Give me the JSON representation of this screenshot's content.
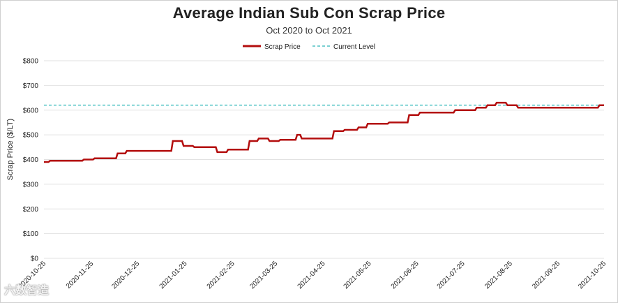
{
  "chart_data": {
    "type": "line",
    "title": "Average Indian Sub Con Scrap Price",
    "subtitle": "Oct 2020 to Oct 2021",
    "ylabel": "Scrap Price ($/LT)",
    "xlabel": "",
    "ylim": [
      0,
      800
    ],
    "yticks": [
      "$0",
      "$100",
      "$200",
      "$300",
      "$400",
      "$500",
      "$600",
      "$700",
      "$800"
    ],
    "xticks": [
      "2020-10-25",
      "2020-11-25",
      "2020-12-25",
      "2021-01-25",
      "2021-02-25",
      "2021-03-25",
      "2021-04-25",
      "2021-05-25",
      "2021-06-25",
      "2021-07-25",
      "2021-08-25",
      "2021-09-25",
      "2021-10-25"
    ],
    "legend": [
      "Scrap Price",
      "Current Level"
    ],
    "current_level": 620,
    "colors": {
      "scrap_price": "#b30d0d",
      "current_level": "#4fc1c4",
      "grid": "#e2e2e2"
    },
    "series": [
      {
        "name": "Scrap Price",
        "points": [
          [
            "2020-10-25",
            390
          ],
          [
            "2020-10-28",
            390
          ],
          [
            "2020-10-29",
            395
          ],
          [
            "2020-11-19",
            395
          ],
          [
            "2020-11-20",
            400
          ],
          [
            "2020-11-26",
            400
          ],
          [
            "2020-11-27",
            405
          ],
          [
            "2020-12-11",
            405
          ],
          [
            "2020-12-12",
            425
          ],
          [
            "2020-12-17",
            425
          ],
          [
            "2020-12-18",
            435
          ],
          [
            "2021-01-16",
            435
          ],
          [
            "2021-01-17",
            475
          ],
          [
            "2021-01-23",
            475
          ],
          [
            "2021-01-24",
            455
          ],
          [
            "2021-01-30",
            455
          ],
          [
            "2021-01-31",
            450
          ],
          [
            "2021-02-14",
            450
          ],
          [
            "2021-02-15",
            430
          ],
          [
            "2021-02-21",
            430
          ],
          [
            "2021-02-22",
            440
          ],
          [
            "2021-03-07",
            440
          ],
          [
            "2021-03-08",
            475
          ],
          [
            "2021-03-13",
            475
          ],
          [
            "2021-03-14",
            485
          ],
          [
            "2021-03-20",
            485
          ],
          [
            "2021-03-21",
            475
          ],
          [
            "2021-03-27",
            475
          ],
          [
            "2021-03-28",
            480
          ],
          [
            "2021-04-07",
            480
          ],
          [
            "2021-04-08",
            500
          ],
          [
            "2021-04-10",
            500
          ],
          [
            "2021-04-11",
            485
          ],
          [
            "2021-05-01",
            485
          ],
          [
            "2021-05-02",
            515
          ],
          [
            "2021-05-08",
            515
          ],
          [
            "2021-05-09",
            520
          ],
          [
            "2021-05-17",
            520
          ],
          [
            "2021-05-18",
            530
          ],
          [
            "2021-05-23",
            530
          ],
          [
            "2021-05-24",
            545
          ],
          [
            "2021-06-06",
            545
          ],
          [
            "2021-06-07",
            550
          ],
          [
            "2021-06-19",
            550
          ],
          [
            "2021-06-20",
            580
          ],
          [
            "2021-06-26",
            580
          ],
          [
            "2021-06-27",
            590
          ],
          [
            "2021-07-19",
            590
          ],
          [
            "2021-07-20",
            600
          ],
          [
            "2021-08-02",
            600
          ],
          [
            "2021-08-03",
            610
          ],
          [
            "2021-08-09",
            610
          ],
          [
            "2021-08-10",
            620
          ],
          [
            "2021-08-15",
            620
          ],
          [
            "2021-08-16",
            630
          ],
          [
            "2021-08-22",
            630
          ],
          [
            "2021-08-23",
            620
          ],
          [
            "2021-08-29",
            620
          ],
          [
            "2021-08-30",
            610
          ],
          [
            "2021-10-21",
            610
          ],
          [
            "2021-10-22",
            620
          ],
          [
            "2021-10-25",
            620
          ]
        ]
      }
    ]
  },
  "watermark": "六数智造"
}
